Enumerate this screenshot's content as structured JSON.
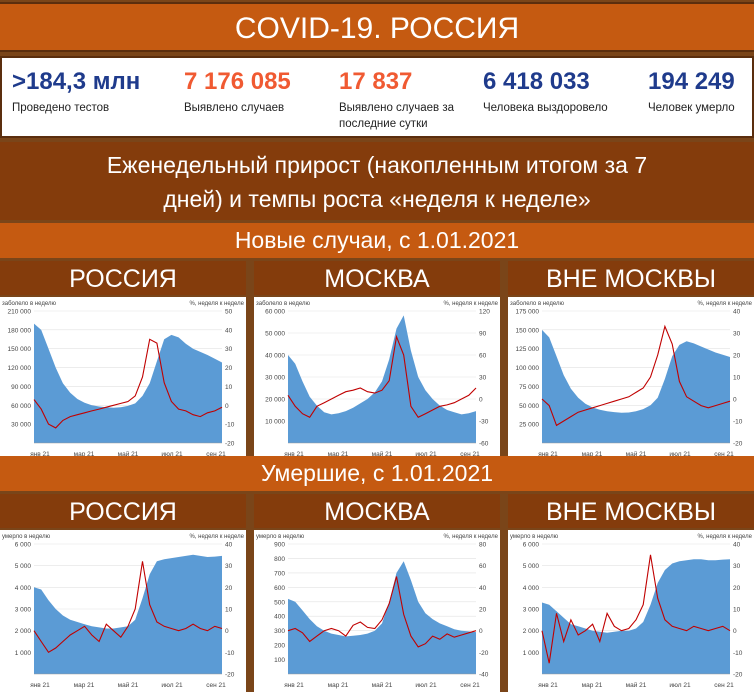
{
  "header": {
    "title": "COVID-19. РОССИЯ"
  },
  "stats": [
    {
      "value": ">184,3 млн",
      "label": "Проведено тестов",
      "color": "#1f3b8c"
    },
    {
      "value": "7 176 085",
      "label": "Выявлено случаев",
      "color": "#f05a32"
    },
    {
      "value": "17 837",
      "label": "Выявлено случаев за последние сутки",
      "color": "#f05a32"
    },
    {
      "value": "6 418 033",
      "label": "Человека выздоровело",
      "color": "#1f3b8c"
    },
    {
      "value": "194 249",
      "label": "Человек умерло",
      "color": "#1f3b8c"
    }
  ],
  "subtitle": {
    "line1": "Еженедельный прирост (накопленным итогом за 7",
    "line2": "дней) и темпы роста «неделя к неделе»"
  },
  "sections": {
    "cases": "Новые случаи, с 1.01.2021",
    "deaths": "Умершие, с 1.01.2021"
  },
  "panel_titles": {
    "russia": "РОССИЯ",
    "moscow": "МОСКВА",
    "outside": "ВНЕ МОСКВЫ"
  },
  "colors": {
    "area": "#5b9bd5",
    "line": "#c00000"
  },
  "chart_data": [
    {
      "type": "area",
      "name": "cases-russia",
      "left_label": "заболело в неделю",
      "right_label": "%, неделя к неделе",
      "x_ticks": [
        "янв 21",
        "мар 21",
        "май 21",
        "июл 21",
        "сен 21"
      ],
      "ylim": [
        0,
        210000
      ],
      "y_ticks": [
        "30 000",
        "60 000",
        "90 000",
        "120 000",
        "150 000",
        "180 000",
        "210 000"
      ],
      "y2lim": [
        -20,
        50
      ],
      "y2_ticks": [
        "-20",
        "-10",
        "0",
        "10",
        "20",
        "30",
        "40",
        "50"
      ],
      "area_values": [
        190000,
        180000,
        150000,
        120000,
        95000,
        80000,
        70000,
        64000,
        60000,
        58000,
        57000,
        56000,
        57000,
        59000,
        63000,
        75000,
        95000,
        130000,
        165000,
        172000,
        168000,
        158000,
        150000,
        145000,
        140000,
        134000,
        128000
      ],
      "line_values": [
        3,
        -2,
        -10,
        -12,
        -8,
        -6,
        -5,
        -4,
        -3,
        -2,
        -1,
        0,
        1,
        2,
        5,
        15,
        35,
        33,
        12,
        2,
        -2,
        -3,
        -5,
        -6,
        -4,
        -3,
        -1
      ]
    },
    {
      "type": "area",
      "name": "cases-moscow",
      "left_label": "заболело в неделю",
      "right_label": "%, неделя к неделе",
      "x_ticks": [
        "янв 21",
        "мар 21",
        "май 21",
        "июл 21",
        "сен 21"
      ],
      "ylim": [
        0,
        60000
      ],
      "y_ticks": [
        "10 000",
        "20 000",
        "30 000",
        "40 000",
        "50 000",
        "60 000"
      ],
      "y2lim": [
        -60,
        120
      ],
      "y2_ticks": [
        "-60",
        "-30",
        "0",
        "30",
        "60",
        "90",
        "120"
      ],
      "area_values": [
        40000,
        36000,
        28000,
        21000,
        17000,
        14000,
        13000,
        13500,
        14500,
        16000,
        18000,
        20000,
        23000,
        28000,
        38000,
        52000,
        58000,
        42000,
        30000,
        24000,
        20000,
        17000,
        15000,
        14000,
        13000,
        13500,
        14500
      ],
      "line_values": [
        5,
        -10,
        -20,
        -25,
        -10,
        -5,
        0,
        5,
        10,
        12,
        15,
        10,
        8,
        12,
        25,
        85,
        60,
        -10,
        -25,
        -20,
        -15,
        -10,
        -8,
        -5,
        0,
        5,
        15
      ]
    },
    {
      "type": "area",
      "name": "cases-outside",
      "left_label": "заболело в неделю",
      "right_label": "%, неделя к неделе",
      "x_ticks": [
        "янв 21",
        "мар 21",
        "май 21",
        "июл 21",
        "сен 21"
      ],
      "ylim": [
        0,
        175000
      ],
      "y_ticks": [
        "25 000",
        "50 000",
        "75 000",
        "100 000",
        "125 000",
        "150 000",
        "175 000"
      ],
      "y2lim": [
        -20,
        40
      ],
      "y2_ticks": [
        "-20",
        "-10",
        "0",
        "10",
        "20",
        "30",
        "40"
      ],
      "area_values": [
        150000,
        140000,
        115000,
        90000,
        72000,
        60000,
        52000,
        47000,
        44000,
        42000,
        41000,
        40000,
        40500,
        42000,
        45000,
        50000,
        60000,
        85000,
        115000,
        130000,
        135000,
        132000,
        128000,
        124000,
        120000,
        117000,
        114000
      ],
      "line_values": [
        0,
        -3,
        -12,
        -10,
        -8,
        -6,
        -5,
        -4,
        -3,
        -2,
        -1,
        0,
        1,
        3,
        5,
        10,
        20,
        33,
        25,
        8,
        1,
        -1,
        -3,
        -4,
        -3,
        -2,
        -1
      ]
    },
    {
      "type": "area",
      "name": "deaths-russia",
      "left_label": "умерло в неделю",
      "right_label": "%, неделя к неделе",
      "x_ticks": [
        "янв 21",
        "мар 21",
        "май 21",
        "июл 21",
        "сен 21"
      ],
      "ylim": [
        0,
        6000
      ],
      "y_ticks": [
        "1 000",
        "2 000",
        "3 000",
        "4 000",
        "5 000",
        "6 000"
      ],
      "y2lim": [
        -20,
        40
      ],
      "y2_ticks": [
        "-20",
        "-10",
        "0",
        "10",
        "20",
        "30",
        "40"
      ],
      "area_values": [
        4000,
        3900,
        3400,
        3000,
        2700,
        2500,
        2400,
        2300,
        2200,
        2150,
        2100,
        2100,
        2150,
        2200,
        2500,
        3500,
        4600,
        5200,
        5300,
        5350,
        5400,
        5450,
        5500,
        5450,
        5400,
        5420,
        5450
      ],
      "line_values": [
        0,
        -5,
        -10,
        -8,
        -5,
        -2,
        0,
        2,
        -2,
        -5,
        3,
        0,
        -3,
        2,
        10,
        32,
        12,
        4,
        2,
        1,
        0,
        1,
        3,
        1,
        0,
        2,
        1
      ]
    },
    {
      "type": "area",
      "name": "deaths-moscow",
      "left_label": "умерло в неделю",
      "right_label": "%, неделя к неделе",
      "x_ticks": [
        "янв 21",
        "мар 21",
        "май 21",
        "июл 21",
        "сен 21"
      ],
      "ylim": [
        0,
        900
      ],
      "y_ticks": [
        "100",
        "200",
        "300",
        "400",
        "500",
        "600",
        "700",
        "800",
        "900"
      ],
      "y2lim": [
        -40,
        80
      ],
      "y2_ticks": [
        "-40",
        "-20",
        "0",
        "20",
        "40",
        "60",
        "80"
      ],
      "area_values": [
        520,
        500,
        440,
        380,
        330,
        300,
        280,
        270,
        260,
        265,
        270,
        280,
        300,
        350,
        500,
        700,
        780,
        650,
        500,
        420,
        380,
        350,
        330,
        310,
        300,
        295,
        290
      ],
      "line_values": [
        0,
        2,
        -2,
        -10,
        -5,
        0,
        2,
        0,
        -5,
        5,
        8,
        3,
        2,
        10,
        25,
        50,
        15,
        -5,
        -15,
        -12,
        -5,
        -8,
        -3,
        -6,
        -4,
        -2,
        0
      ]
    },
    {
      "type": "area",
      "name": "deaths-outside",
      "left_label": "умерло в неделю",
      "right_label": "%, неделя к неделе",
      "x_ticks": [
        "янв 21",
        "мар 21",
        "май 21",
        "июл 21",
        "сен 21"
      ],
      "ylim": [
        0,
        6000
      ],
      "y_ticks": [
        "1 000",
        "2 000",
        "3 000",
        "4 000",
        "5 000",
        "6 000"
      ],
      "y2lim": [
        -20,
        40
      ],
      "y2_ticks": [
        "-20",
        "-10",
        "0",
        "10",
        "20",
        "30",
        "40"
      ],
      "area_values": [
        3300,
        3200,
        2900,
        2600,
        2300,
        2200,
        2100,
        2000,
        1950,
        1900,
        1950,
        2000,
        2000,
        2100,
        2400,
        3200,
        4200,
        4800,
        5100,
        5200,
        5250,
        5300,
        5300,
        5250,
        5250,
        5280,
        5300
      ],
      "line_values": [
        0,
        -15,
        8,
        -5,
        5,
        -2,
        0,
        3,
        -5,
        8,
        2,
        0,
        1,
        5,
        12,
        35,
        15,
        5,
        2,
        1,
        0,
        2,
        1,
        0,
        1,
        2,
        0
      ]
    }
  ]
}
